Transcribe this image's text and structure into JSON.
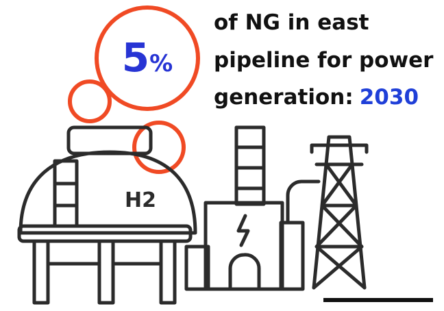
{
  "stat": {
    "number": "5",
    "unit": "%"
  },
  "caption": {
    "lines": [
      "of NG in east",
      "pipeline for power",
      "generation:"
    ],
    "year": "2030"
  },
  "tank_label": "H2"
}
